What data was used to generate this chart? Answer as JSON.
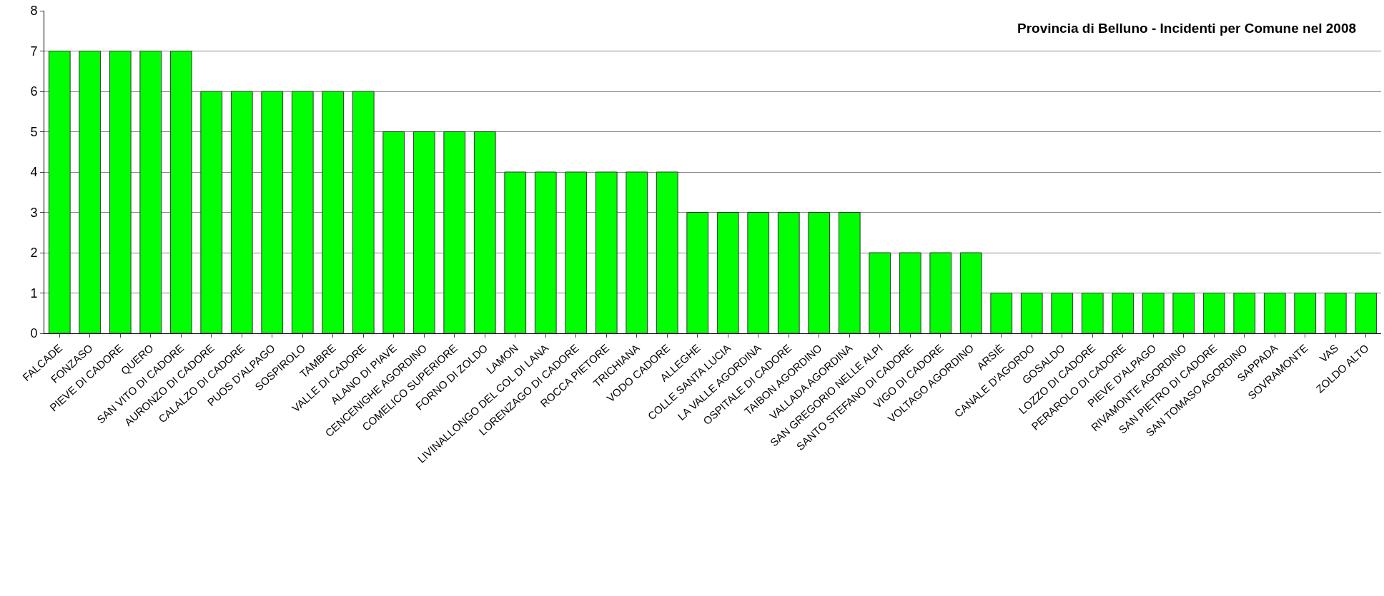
{
  "chart_data": {
    "type": "bar",
    "title": "Provincia di Belluno - Incidenti per Comune nel 2008",
    "categories": [
      "FALCADE",
      "FONZASO",
      "PIEVE DI CADORE",
      "QUERO",
      "SAN VITO DI CADORE",
      "AURONZO DI CADORE",
      "CALALZO DI CADORE",
      "PUOS D'ALPAGO",
      "SOSPIROLO",
      "TAMBRE",
      "VALLE DI CADORE",
      "ALANO DI PIAVE",
      "CENCENIGHE AGORDINO",
      "COMELICO SUPERIORE",
      "FORNO DI ZOLDO",
      "LAMON",
      "LIVINALLONGO DEL COL DI LANA",
      "LORENZAGO DI CADORE",
      "ROCCA PIETORE",
      "TRICHIANA",
      "VODO CADORE",
      "ALLEGHE",
      "COLLE SANTA LUCIA",
      "LA VALLE AGORDINA",
      "OSPITALE DI CADORE",
      "TAIBON AGORDINO",
      "VALLADA AGORDINA",
      "SAN GREGORIO NELLE ALPI",
      "SANTO STEFANO DI CADORE",
      "VIGO DI CADORE",
      "VOLTAGO AGORDINO",
      "ARSIÈ",
      "CANALE D'AGORDO",
      "GOSALDO",
      "LOZZO DI CADORE",
      "PERAROLO DI CADORE",
      "PIEVE D'ALPAGO",
      "RIVAMONTE AGORDINO",
      "SAN PIETRO DI CADORE",
      "SAN TOMASO AGORDINO",
      "SAPPADA",
      "SOVRAMONTE",
      "VAS",
      "ZOLDO ALTO"
    ],
    "values": [
      7,
      7,
      7,
      7,
      7,
      6,
      6,
      6,
      6,
      6,
      6,
      5,
      5,
      5,
      5,
      4,
      4,
      4,
      4,
      4,
      4,
      3,
      3,
      3,
      3,
      3,
      3,
      2,
      2,
      2,
      2,
      1,
      1,
      1,
      1,
      1,
      1,
      1,
      1,
      1,
      1,
      1,
      1,
      1
    ],
    "color": "#00ff00",
    "ylim": [
      0,
      8
    ],
    "yticks": [
      0,
      1,
      2,
      3,
      4,
      5,
      6,
      7,
      8
    ],
    "grid": "y"
  }
}
